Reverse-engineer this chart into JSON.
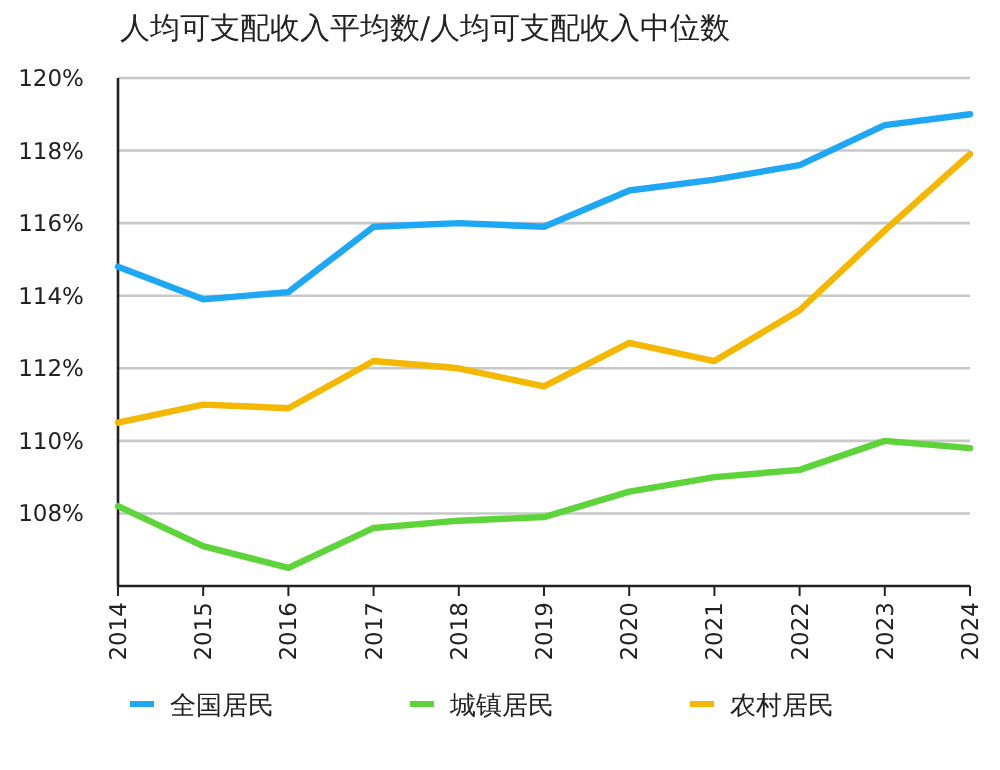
{
  "chart_data": {
    "type": "line",
    "title": "人均可支配收入平均数/人均可支配收入中位数",
    "categories": [
      "2014",
      "2015",
      "2016",
      "2017",
      "2018",
      "2019",
      "2020",
      "2021",
      "2022",
      "2023",
      "2024"
    ],
    "series": [
      {
        "name": "全国居民",
        "color": "#1ea7f5",
        "values": [
          114.8,
          113.9,
          114.1,
          115.9,
          116.0,
          115.9,
          116.9,
          117.2,
          117.6,
          118.7,
          119.0
        ]
      },
      {
        "name": "城镇居民",
        "color": "#5dd43a",
        "values": [
          108.2,
          107.1,
          106.5,
          107.6,
          107.8,
          107.9,
          108.6,
          109.0,
          109.2,
          110.0,
          109.8
        ]
      },
      {
        "name": "农村居民",
        "color": "#f5b800",
        "values": [
          110.5,
          111.0,
          110.9,
          112.2,
          112.0,
          111.5,
          112.7,
          112.2,
          113.6,
          115.8,
          117.9
        ]
      }
    ],
    "ylim": [
      106,
      120
    ],
    "yticks": [
      {
        "value": 108,
        "label": "108%"
      },
      {
        "value": 110,
        "label": "110%"
      },
      {
        "value": 112,
        "label": "112%"
      },
      {
        "value": 114,
        "label": "114%"
      },
      {
        "value": 116,
        "label": "116%"
      },
      {
        "value": 118,
        "label": "118%"
      },
      {
        "value": 120,
        "label": "120%"
      }
    ],
    "grid": "y",
    "legend": "bottom",
    "marker": "none",
    "line_style": "solid"
  }
}
